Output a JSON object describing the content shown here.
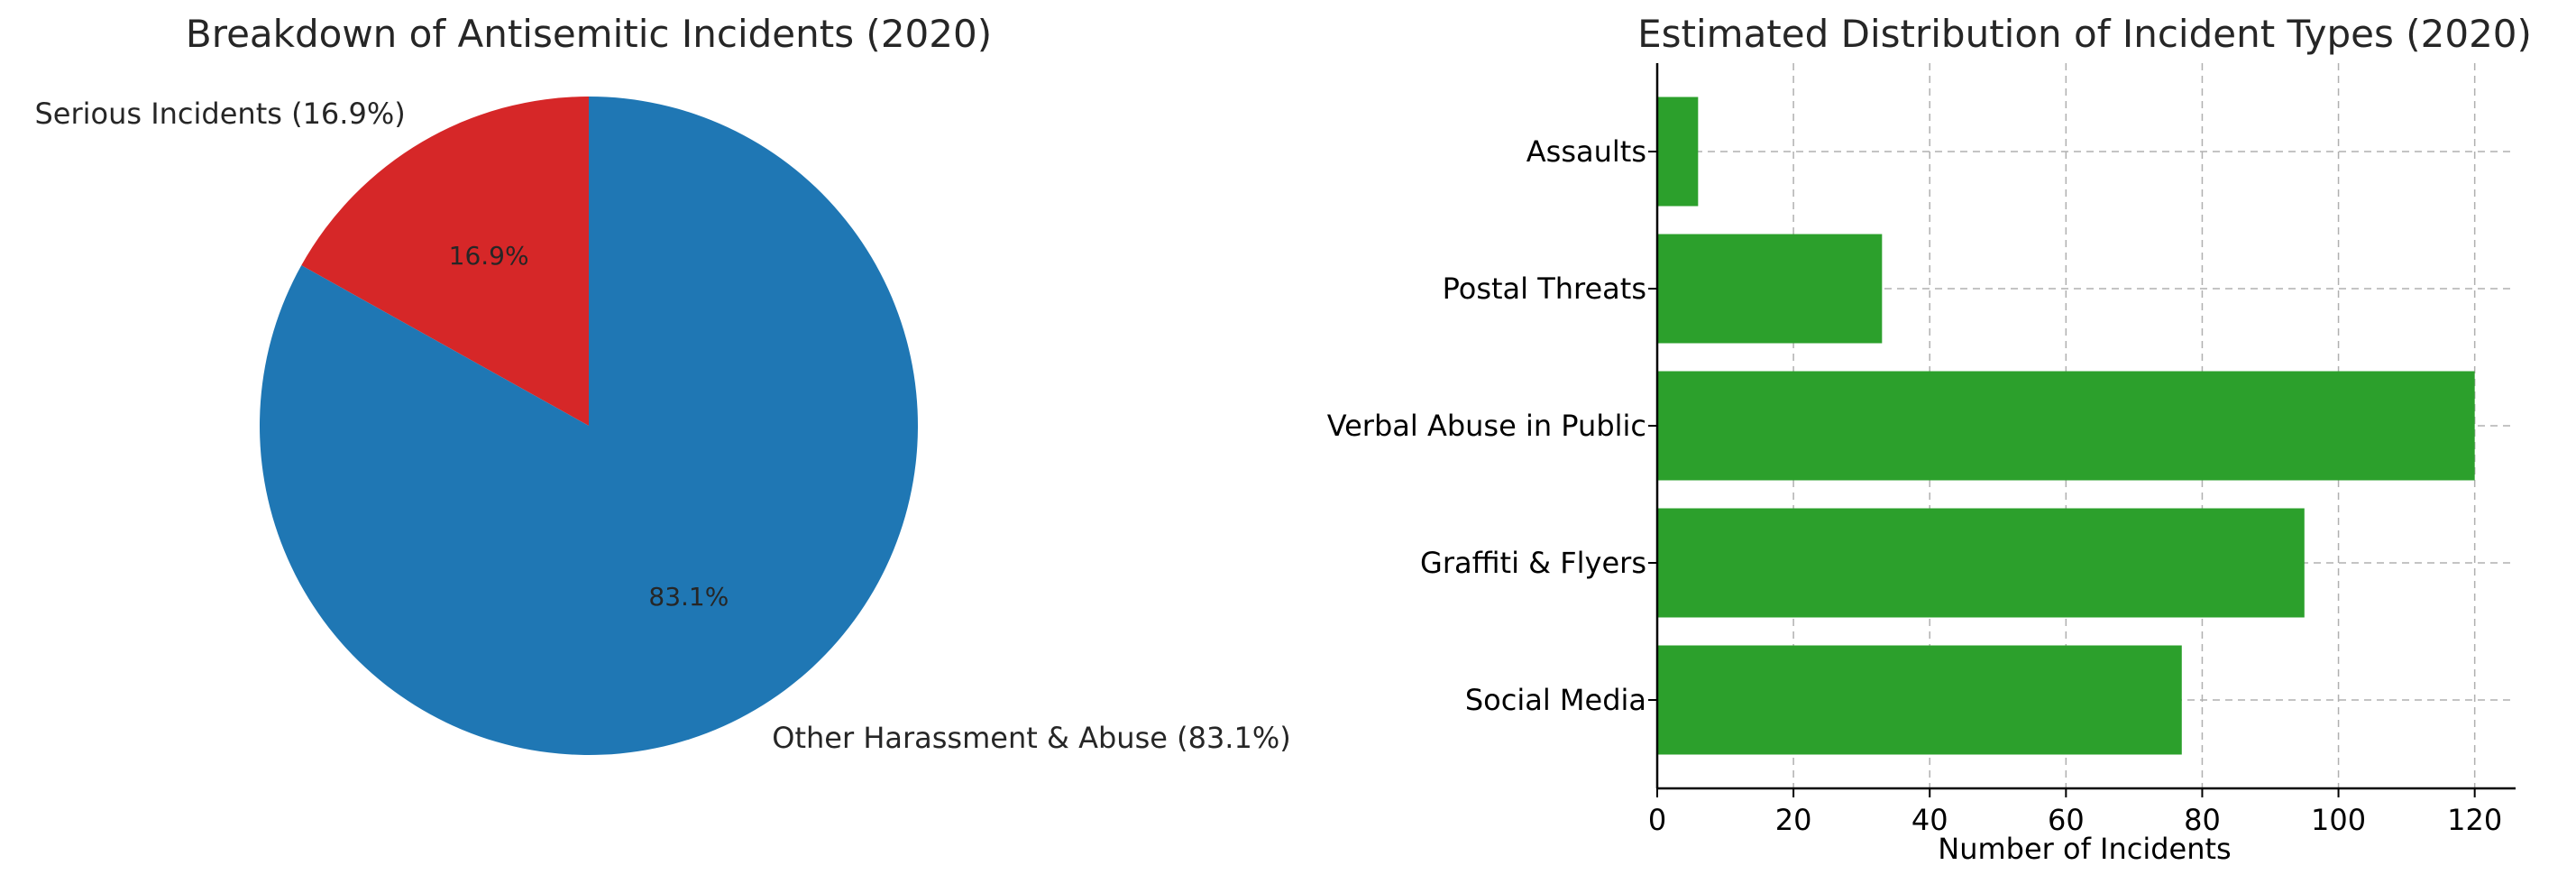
{
  "chart_data": [
    {
      "type": "pie",
      "title": "Breakdown of Antisemitic Incidents (2020)",
      "slices": [
        {
          "label": "Serious Incidents (16.9%)",
          "value": 16.9,
          "pct_label": "16.9%",
          "color": "#d62728"
        },
        {
          "label": "Other Harassment & Abuse (83.1%)",
          "value": 83.1,
          "pct_label": "83.1%",
          "color": "#1f77b4"
        }
      ],
      "start_angle_deg": 90,
      "direction": "counterclockwise"
    },
    {
      "type": "bar",
      "orientation": "horizontal",
      "title": "Estimated Distribution of Incident Types (2020)",
      "categories": [
        "Assaults",
        "Postal Threats",
        "Verbal Abuse in Public",
        "Graffiti & Flyers",
        "Social Media"
      ],
      "values": [
        6,
        33,
        120,
        95,
        77
      ],
      "color": "#2ca02c",
      "xlabel": "Number of Incidents",
      "ylabel": "",
      "xlim": [
        0,
        126
      ],
      "xticks": [
        "0",
        "20",
        "40",
        "60",
        "80",
        "100",
        "120"
      ],
      "grid": true
    }
  ]
}
